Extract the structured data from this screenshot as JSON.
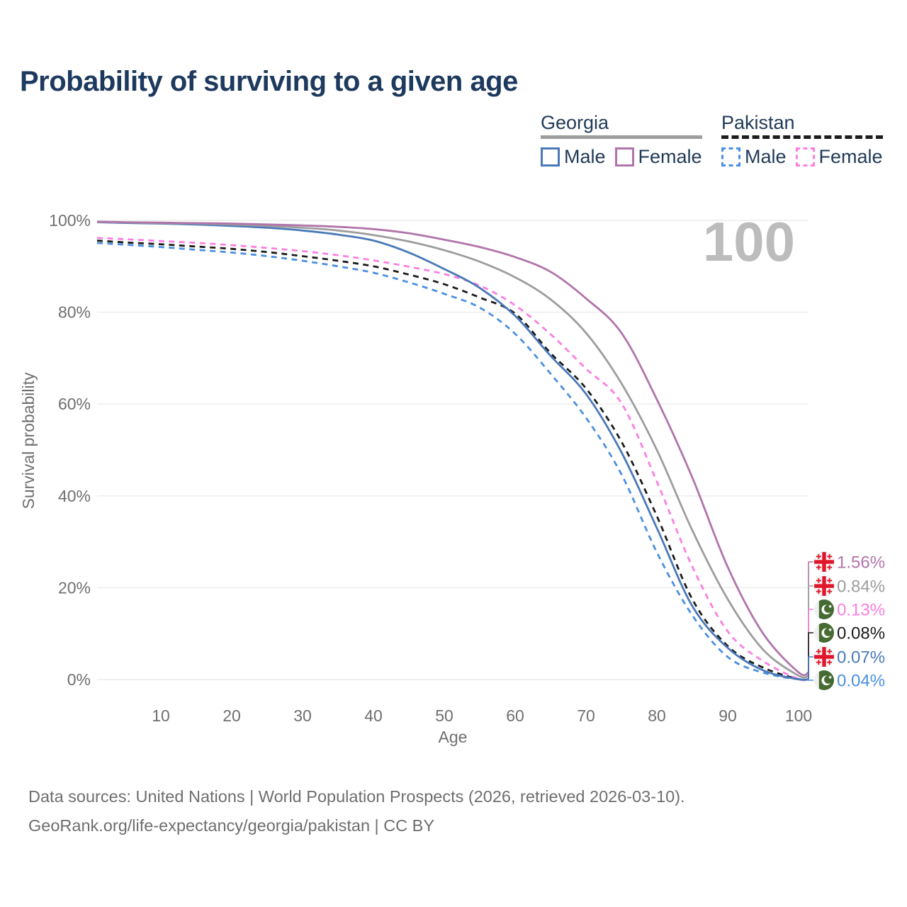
{
  "title": "Probability of surviving to a given age",
  "watermark": "100",
  "legend": {
    "georgia": {
      "title": "Georgia",
      "male": "Male",
      "female": "Female"
    },
    "pakistan": {
      "title": "Pakistan",
      "male": "Male",
      "female": "Female"
    }
  },
  "source": {
    "line1": "Data sources: United Nations | World Population Prospects (2026, retrieved 2026-03-10).",
    "line2": "GeoRank.org/life-expectancy/georgia/pakistan | CC BY"
  },
  "colors": {
    "title": "#1d3a5e",
    "legend_text": "#223a58",
    "axis_text": "#6f6f6f",
    "grid": "#ececec",
    "watermark": "#bcbcbc",
    "source_text": "#6e6e6e",
    "georgia_male": "#4a79b8",
    "georgia_female": "#b174aa",
    "georgia_all": "#9d9d9d",
    "pakistan_male": "#4a90e2",
    "pakistan_female": "#fb7fe1",
    "pakistan_all": "#1c1c1c",
    "georgia_flag_red": "#e0162b",
    "pakistan_flag_green": "#456b33"
  },
  "chart_data": {
    "type": "line",
    "title": "Probability of surviving to a given age",
    "xlabel": "Age",
    "ylabel": "Survival probability",
    "xlim": [
      1,
      101.4
    ],
    "ylim": [
      0,
      100
    ],
    "grid": true,
    "legend_position": "top-right",
    "x_ticks": [
      10,
      20,
      30,
      40,
      50,
      60,
      70,
      80,
      90,
      100
    ],
    "y_tick_values": [
      100,
      80,
      60,
      40,
      20,
      0
    ],
    "y_ticks": [
      "100%",
      "80%",
      "60%",
      "40%",
      "20%",
      "0%"
    ],
    "ages": [
      1,
      5,
      10,
      15,
      20,
      25,
      30,
      35,
      40,
      45,
      50,
      55,
      60,
      65,
      70,
      75,
      80,
      85,
      90,
      95,
      100
    ],
    "series": [
      {
        "name": "Pakistan Male",
        "country": "Pakistan",
        "sex": "Male",
        "color": "#4a90e2",
        "dash": true,
        "end_label": "0.04%",
        "values": [
          95.1,
          94.7,
          94.2,
          93.6,
          93.0,
          92.2,
          91.2,
          90.0,
          88.6,
          86.5,
          84.0,
          81.0,
          75.3,
          66.6,
          57.0,
          44.7,
          27.7,
          14.0,
          4.9,
          1.5,
          0.04
        ]
      },
      {
        "name": "Pakistan Both sexes",
        "country": "Pakistan",
        "sex": "Both",
        "color": "#1c1c1c",
        "dash": true,
        "end_label": "0.08%",
        "values": [
          95.6,
          95.2,
          94.8,
          94.3,
          93.8,
          93.1,
          92.2,
          91.2,
          90.0,
          88.2,
          86.1,
          83.2,
          79.7,
          71.1,
          63.4,
          51.8,
          35.6,
          17.5,
          7.3,
          2.6,
          0.08
        ]
      },
      {
        "name": "Pakistan Female",
        "country": "Pakistan",
        "sex": "Female",
        "color": "#fb7fe1",
        "dash": true,
        "end_label": "0.13%",
        "values": [
          96.2,
          95.9,
          95.5,
          95.1,
          94.6,
          94.0,
          93.3,
          92.4,
          91.3,
          89.9,
          88.3,
          85.8,
          81.5,
          75.2,
          67.7,
          60.2,
          43.1,
          24.6,
          10.5,
          4.0,
          0.13
        ]
      },
      {
        "name": "Georgia Male",
        "country": "Georgia",
        "sex": "Male",
        "color": "#4a79b8",
        "dash": false,
        "end_label": "0.07%",
        "values": [
          99.6,
          99.45,
          99.3,
          99.1,
          98.8,
          98.4,
          97.8,
          96.9,
          95.6,
          93.0,
          89.4,
          85.3,
          79.2,
          70.5,
          62.2,
          49.5,
          33.0,
          16.0,
          6.9,
          2.0,
          0.07
        ]
      },
      {
        "name": "Georgia Both sexes",
        "country": "Georgia",
        "sex": "Both",
        "color": "#9d9d9d",
        "dash": false,
        "end_label": "0.84%",
        "values": [
          99.65,
          99.55,
          99.4,
          99.3,
          99.1,
          98.8,
          98.4,
          97.8,
          96.8,
          95.4,
          93.5,
          91.0,
          87.6,
          82.8,
          75.5,
          64.5,
          50.0,
          32.5,
          17.5,
          6.5,
          0.84
        ]
      },
      {
        "name": "Georgia Female",
        "country": "Georgia",
        "sex": "Female",
        "color": "#b174aa",
        "dash": false,
        "end_label": "1.56%",
        "values": [
          99.7,
          99.6,
          99.5,
          99.4,
          99.3,
          99.1,
          98.9,
          98.6,
          98.1,
          97.2,
          95.8,
          94.2,
          92.0,
          88.8,
          83.0,
          75.5,
          61.0,
          44.0,
          24.5,
          10.0,
          1.56
        ]
      }
    ],
    "end_labels": [
      {
        "value": "1.56%",
        "flag": "georgia",
        "series": "Georgia Female",
        "color": "#b174aa"
      },
      {
        "value": "0.84%",
        "flag": "georgia",
        "series": "Georgia Both sexes",
        "color": "#9d9d9d"
      },
      {
        "value": "0.13%",
        "flag": "pakistan",
        "series": "Pakistan Female",
        "color": "#fb7fe1"
      },
      {
        "value": "0.08%",
        "flag": "pakistan",
        "series": "Pakistan Both sexes",
        "color": "#1c1c1c"
      },
      {
        "value": "0.07%",
        "flag": "georgia",
        "series": "Georgia Male",
        "color": "#4a79b8"
      },
      {
        "value": "0.04%",
        "flag": "pakistan",
        "series": "Pakistan Male",
        "color": "#4a90e2"
      }
    ]
  }
}
